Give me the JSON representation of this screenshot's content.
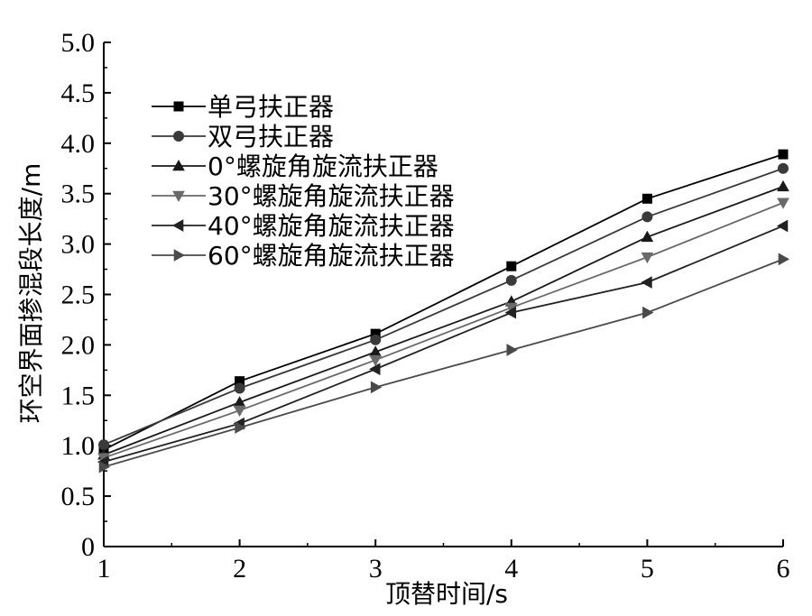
{
  "chart_data": {
    "type": "line",
    "xlabel": "顶替时间/s",
    "ylabel": "环空界面掺混段长度/m",
    "xlim": [
      1,
      6
    ],
    "ylim": [
      0,
      5.0
    ],
    "x_ticks": [
      "1",
      "2",
      "3",
      "4",
      "5",
      "6"
    ],
    "y_ticks": [
      "0",
      "0.5",
      "1.0",
      "1.5",
      "2.0",
      "2.5",
      "3.0",
      "3.5",
      "4.0",
      "4.5",
      "5.0"
    ],
    "x": [
      1,
      2,
      3,
      4,
      5,
      6
    ],
    "legend_position": "top-left",
    "grid": false,
    "series": [
      {
        "name": "单弓扶正器",
        "marker": "square",
        "color": "#000000",
        "values": [
          0.96,
          1.64,
          2.11,
          2.78,
          3.45,
          3.89
        ]
      },
      {
        "name": "双弓扶正器",
        "marker": "circle",
        "color": "#3a3a3a",
        "values": [
          1.01,
          1.57,
          2.05,
          2.64,
          3.27,
          3.75
        ]
      },
      {
        "name": "0°螺旋角旋流扶正器",
        "marker": "triangle-up",
        "color": "#1a1a1a",
        "values": [
          0.91,
          1.43,
          1.93,
          2.43,
          3.07,
          3.57
        ]
      },
      {
        "name": "30°螺旋角旋流扶正器",
        "marker": "triangle-down",
        "color": "#6a6a6a",
        "values": [
          0.88,
          1.35,
          1.85,
          2.37,
          2.87,
          3.41
        ]
      },
      {
        "name": "40°螺旋角旋流扶正器",
        "marker": "triangle-left",
        "color": "#222222",
        "values": [
          0.84,
          1.22,
          1.76,
          2.32,
          2.62,
          3.18
        ]
      },
      {
        "name": "60°螺旋角旋流扶正器",
        "marker": "triangle-right",
        "color": "#4a4a4a",
        "values": [
          0.79,
          1.18,
          1.58,
          1.95,
          2.32,
          2.85
        ]
      }
    ]
  }
}
